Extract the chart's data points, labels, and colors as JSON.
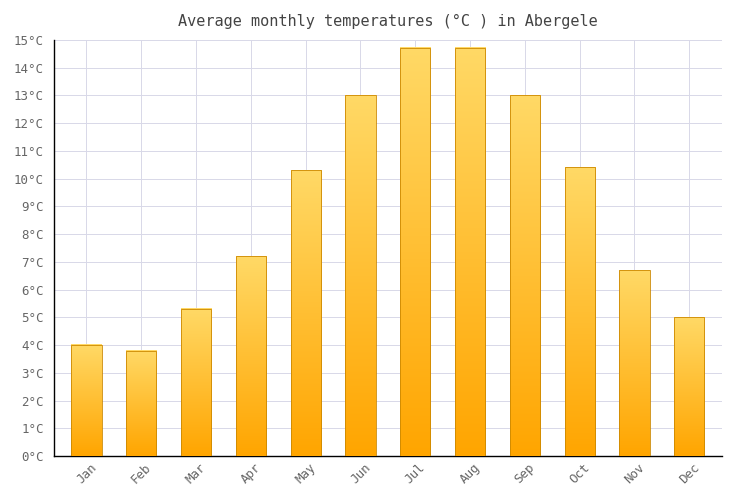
{
  "title": "Average monthly temperatures (°C ) in Abergele",
  "months": [
    "Jan",
    "Feb",
    "Mar",
    "Apr",
    "May",
    "Jun",
    "Jul",
    "Aug",
    "Sep",
    "Oct",
    "Nov",
    "Dec"
  ],
  "values": [
    4.0,
    3.8,
    5.3,
    7.2,
    10.3,
    13.0,
    14.7,
    14.7,
    13.0,
    10.4,
    6.7,
    5.0
  ],
  "bar_color_top": "#FFD966",
  "bar_color_bottom": "#FFA500",
  "bar_edge_color": "#CC8800",
  "background_color": "#ffffff",
  "grid_color": "#d8d8e8",
  "ylim": [
    0,
    15
  ],
  "yticks": [
    0,
    1,
    2,
    3,
    4,
    5,
    6,
    7,
    8,
    9,
    10,
    11,
    12,
    13,
    14,
    15
  ],
  "ytick_labels": [
    "0°C",
    "1°C",
    "2°C",
    "3°C",
    "4°C",
    "5°C",
    "6°C",
    "7°C",
    "8°C",
    "9°C",
    "10°C",
    "11°C",
    "12°C",
    "13°C",
    "14°C",
    "15°C"
  ],
  "title_fontsize": 11,
  "tick_fontsize": 9,
  "title_color": "#444444",
  "tick_color": "#666666",
  "bar_width": 0.55
}
